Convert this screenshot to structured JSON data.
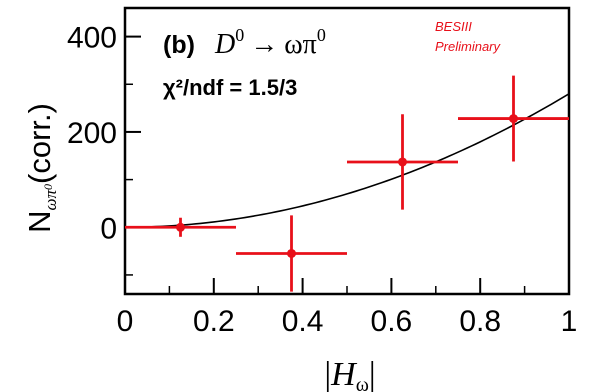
{
  "chart_data": {
    "type": "scatter",
    "panel_label": "(b)",
    "decay_parent": "D",
    "decay_parent_sup": "0",
    "decay_arrow": "→",
    "decay_product": "ωπ",
    "decay_product_sup": "0",
    "fit_stat": "χ²/ndf = 1.5/3",
    "watermark_line1": "BESIII",
    "watermark_line2": "Preliminary",
    "watermark_color": "#e8101a",
    "xlabel": "|Hω|",
    "ylabel": "Nωπ0(corr.)",
    "xlim": [
      0,
      1
    ],
    "ylim": [
      -140,
      460
    ],
    "x_ticks": [
      0,
      0.2,
      0.4,
      0.6,
      0.8,
      1
    ],
    "x_tick_labels": [
      "0",
      "0.2",
      "0.4",
      "0.6",
      "0.8",
      "1"
    ],
    "y_ticks": [
      0,
      200,
      400
    ],
    "y_tick_labels": [
      "0",
      "200",
      "400"
    ],
    "points": [
      {
        "x": 0.125,
        "y": 0,
        "xerr": 0.125,
        "yerr": 20
      },
      {
        "x": 0.375,
        "y": -55,
        "xerr": 0.125,
        "yerr": 80
      },
      {
        "x": 0.625,
        "y": 137,
        "xerr": 0.125,
        "yerr": 100
      },
      {
        "x": 0.875,
        "y": 228,
        "xerr": 0.125,
        "yerr": 90
      }
    ],
    "point_color": "#e8101a",
    "fit_curve": {
      "model": "y = a * x^2",
      "a": 280,
      "color": "#000000"
    }
  }
}
